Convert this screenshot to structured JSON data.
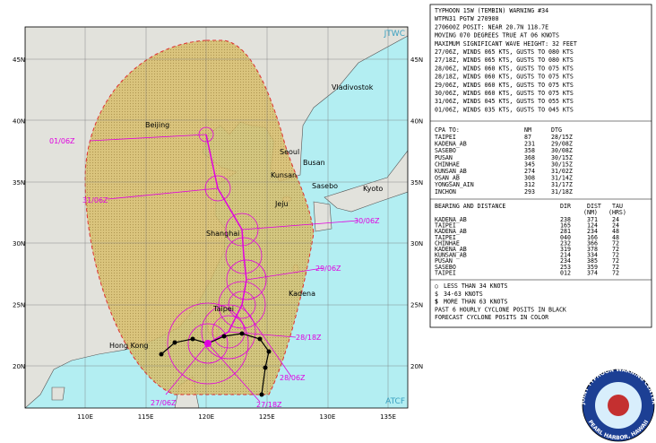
{
  "map": {
    "agency": "JTWC",
    "source": "ATCF",
    "lat_labels": [
      "45N",
      "40N",
      "35N",
      "30N",
      "25N",
      "20N"
    ],
    "lon_labels": [
      "110E",
      "115E",
      "120E",
      "125E",
      "130E",
      "135E"
    ],
    "places": [
      "Vladivostok",
      "Beijing",
      "Seoul",
      "Kunsan",
      "Busan",
      "Jeju",
      "Sasebo",
      "Kyoto",
      "Shanghai",
      "Taipei",
      "Kadena",
      "Hong Kong"
    ],
    "track_labels": [
      "01/06Z",
      "31/06Z",
      "30/06Z",
      "29/06Z",
      "28/18Z",
      "28/06Z",
      "27/18Z",
      "27/06Z"
    ]
  },
  "panel": {
    "header": [
      "TYPHOON 15W (TEMBIN) WARNING #34",
      "WTPN31 PGTW 270900",
      "270600Z POSIT: NEAR 20.7N 118.7E",
      "MOVING 070 DEGREES TRUE AT 06 KNOTS",
      "MAXIMUM SIGNIFICANT WAVE HEIGHT: 32 FEET",
      "27/06Z, WINDS 065 KTS, GUSTS TO 080 KTS",
      "27/18Z, WINDS 065 KTS, GUSTS TO 080 KTS",
      "28/06Z, WINDS 060 KTS, GUSTS TO 075 KTS",
      "28/18Z, WINDS 060 KTS, GUSTS TO 075 KTS",
      "29/06Z, WINDS 060 KTS, GUSTS TO 075 KTS",
      "30/06Z, WINDS 060 KTS, GUSTS TO 075 KTS",
      "31/06Z, WINDS 045 KTS, GUSTS TO 055 KTS",
      "01/06Z, WINDS 035 KTS, GUSTS TO 045 KTS"
    ],
    "cpa_header": [
      "CPA TO:",
      "NM",
      "DTG"
    ],
    "cpa_rows": [
      [
        "TAIPEI",
        "87",
        "28/15Z"
      ],
      [
        "KADENA_AB",
        "231",
        "29/08Z"
      ],
      [
        "SASEBO",
        "358",
        "30/08Z"
      ],
      [
        "PUSAN",
        "368",
        "30/15Z"
      ],
      [
        "CHINHAE",
        "345",
        "30/15Z"
      ],
      [
        "KUNSAN_AB",
        "274",
        "31/02Z"
      ],
      [
        "OSAN_AB",
        "308",
        "31/14Z"
      ],
      [
        "YONGSAN_AIN",
        "312",
        "31/17Z"
      ],
      [
        "INCHON",
        "293",
        "31/18Z"
      ]
    ],
    "bd_header": [
      "BEARING AND DISTANCE",
      "DIR",
      "DIST",
      "TAU"
    ],
    "bd_units": [
      "(NM)",
      "(HRS)"
    ],
    "bd_rows": [
      [
        "KADENA_AB",
        "238",
        "371",
        "24"
      ],
      [
        "TAIPEI",
        "165",
        "124",
        "24"
      ],
      [
        "KADENA_AB",
        "281",
        "234",
        "48"
      ],
      [
        "TAIPEI",
        "040",
        "166",
        "48"
      ],
      [
        "CHINHAE",
        "232",
        "366",
        "72"
      ],
      [
        "KADENA_AB",
        "319",
        "378",
        "72"
      ],
      [
        "KUNSAN_AB",
        "214",
        "334",
        "72"
      ],
      [
        "PUSAN",
        "234",
        "385",
        "72"
      ],
      [
        "SASEBO",
        "253",
        "359",
        "72"
      ],
      [
        "TAIPEI",
        "012",
        "374",
        "72"
      ]
    ],
    "legend": [
      "LESS THAN 34 KNOTS",
      "34-63 KNOTS",
      "MORE THAN 63 KNOTS",
      "PAST 6 HOURLY CYCLONE POSITS IN BLACK",
      "FORECAST CYCLONE POSITS IN COLOR"
    ]
  },
  "seal": {
    "top": "JOINT TYPHOON WARNING CENTER",
    "bottom": "PEARL HARBOR, HAWAII"
  }
}
